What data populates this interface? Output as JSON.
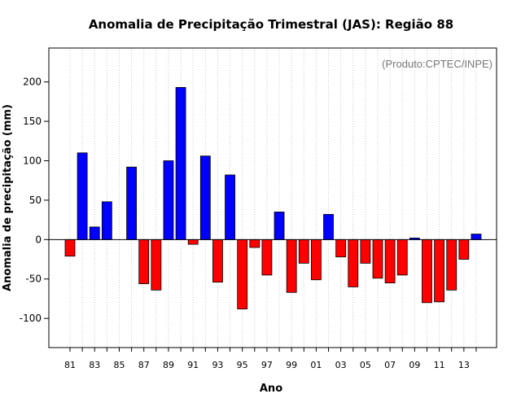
{
  "chart_data": {
    "type": "bar",
    "title": "Anomalia de Precipitação Trimestral (JAS): Região 88",
    "xlabel": "Ano",
    "ylabel": "Anomalia de precipitação (mm)",
    "source_note": "(Produto:CPTEC/INPE)",
    "ylim": [
      -137,
      243
    ],
    "yticks": [
      -100,
      -50,
      0,
      50,
      100,
      150,
      200
    ],
    "ytick_labels": [
      "-100",
      "-50",
      "0",
      "50",
      "100",
      "150",
      "200"
    ],
    "xtick_labels": [
      "81",
      "83",
      "85",
      "87",
      "89",
      "91",
      "93",
      "95",
      "97",
      "99",
      "01",
      "03",
      "05",
      "07",
      "09",
      "11",
      "13"
    ],
    "categories": [
      "81",
      "82",
      "83",
      "84",
      "85",
      "86",
      "87",
      "88",
      "89",
      "90",
      "91",
      "92",
      "93",
      "94",
      "95",
      "96",
      "97",
      "98",
      "99",
      "00",
      "01",
      "02",
      "03",
      "04",
      "05",
      "06",
      "07",
      "08",
      "09",
      "10",
      "11",
      "12",
      "13",
      "14"
    ],
    "values": [
      -21,
      110,
      16,
      48,
      0,
      92,
      -56,
      -64,
      100,
      193,
      -6,
      106,
      -54,
      82,
      -88,
      -10,
      -45,
      35,
      -67,
      -30,
      -51,
      32,
      -22,
      -60,
      -30,
      -49,
      -55,
      -45,
      2,
      -80,
      -79,
      -64,
      -25,
      7
    ],
    "positive_color": "#0000ff",
    "negative_color": "#ff0000",
    "grid": "vertical-dotted"
  }
}
